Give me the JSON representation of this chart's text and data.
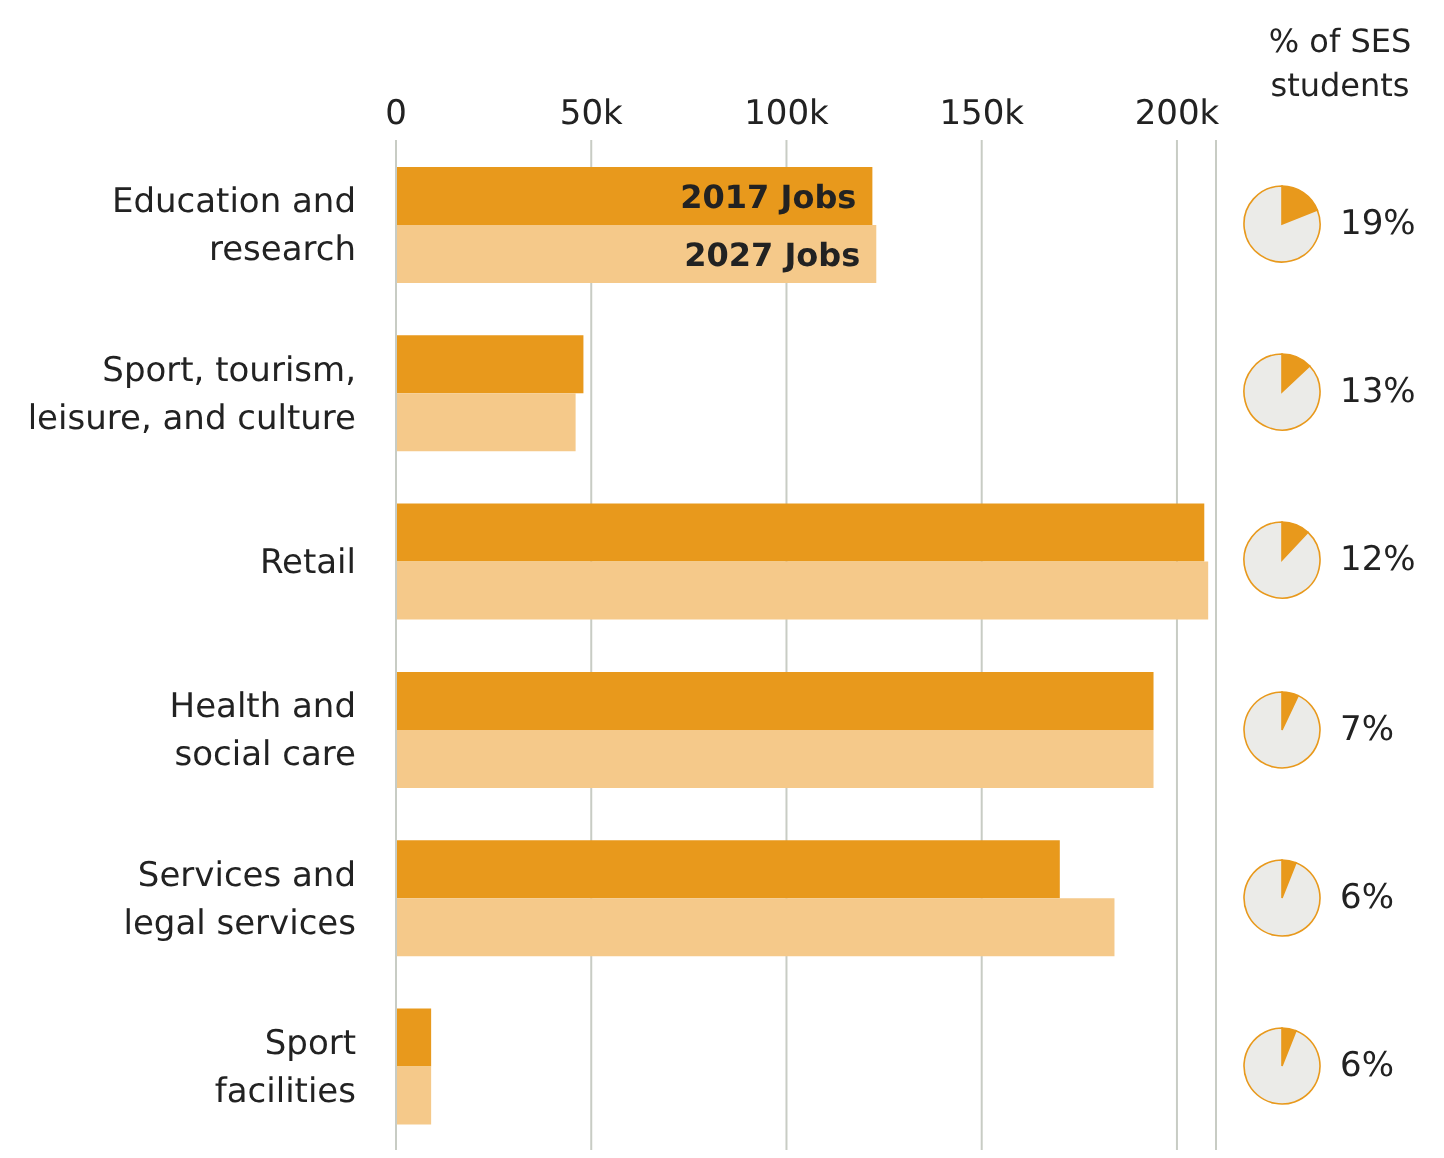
{
  "chart_data": [
    {
      "type": "bar",
      "orientation": "horizontal",
      "categories": [
        "Education and\nresearch",
        "Sport, tourism,\nleisure, and culture",
        "Retail",
        "Health and\nsocial care",
        "Services and\nlegal services",
        "Sport\nfacilities"
      ],
      "series": [
        {
          "name": "2017 Jobs",
          "color": "#e8991c",
          "values": [
            122000,
            48000,
            207000,
            194000,
            170000,
            9000
          ]
        },
        {
          "name": "2027 Jobs",
          "color": "#f5c98a",
          "values": [
            123000,
            46000,
            208000,
            194000,
            184000,
            9000
          ]
        }
      ],
      "xlim": [
        0,
        210000
      ],
      "xticks": [
        {
          "value": 0,
          "label": "0"
        },
        {
          "value": 50000,
          "label": "50k"
        },
        {
          "value": 100000,
          "label": "100k"
        },
        {
          "value": 150000,
          "label": "150k"
        },
        {
          "value": 200000,
          "label": "200k"
        }
      ],
      "grid": "x"
    },
    {
      "type": "other",
      "title": "% of SES students",
      "categories": [
        null,
        null,
        null,
        null,
        null,
        null
      ],
      "values": [
        19,
        13,
        12,
        7,
        6,
        6
      ],
      "value_labels": [
        "19%",
        "13%",
        "12%",
        "7%",
        "6%",
        "6%"
      ],
      "color": "#e8991c"
    }
  ]
}
